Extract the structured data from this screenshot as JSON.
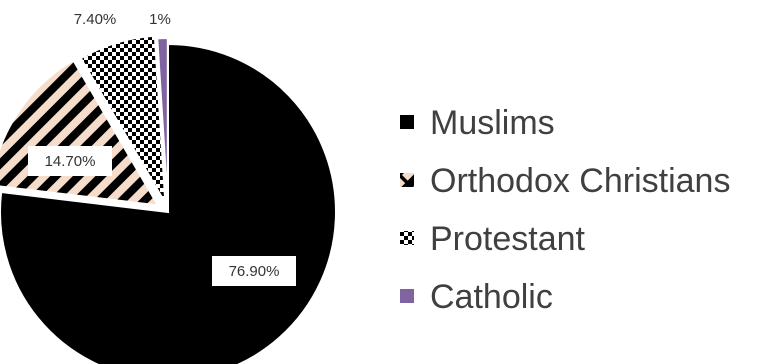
{
  "chart_data": {
    "type": "pie",
    "title": "",
    "categories": [
      "Muslims",
      "Orthodox Christians",
      "Protestant",
      "Catholic"
    ],
    "values": [
      76.9,
      14.7,
      7.4,
      1
    ],
    "value_labels": [
      "76.90%",
      "14.70%",
      "7.40%",
      "1%"
    ],
    "colors": [
      "#000000",
      "#f2d9c7",
      "#000000",
      "#8064a2"
    ],
    "patterns": [
      "solid",
      "diagonal-stripes",
      "checker-dots",
      "solid"
    ],
    "exploded": true,
    "legend": {
      "placement": "right",
      "labels": [
        "Muslims",
        "Orthodox Christians",
        "Protestant",
        "Catholic"
      ]
    }
  }
}
